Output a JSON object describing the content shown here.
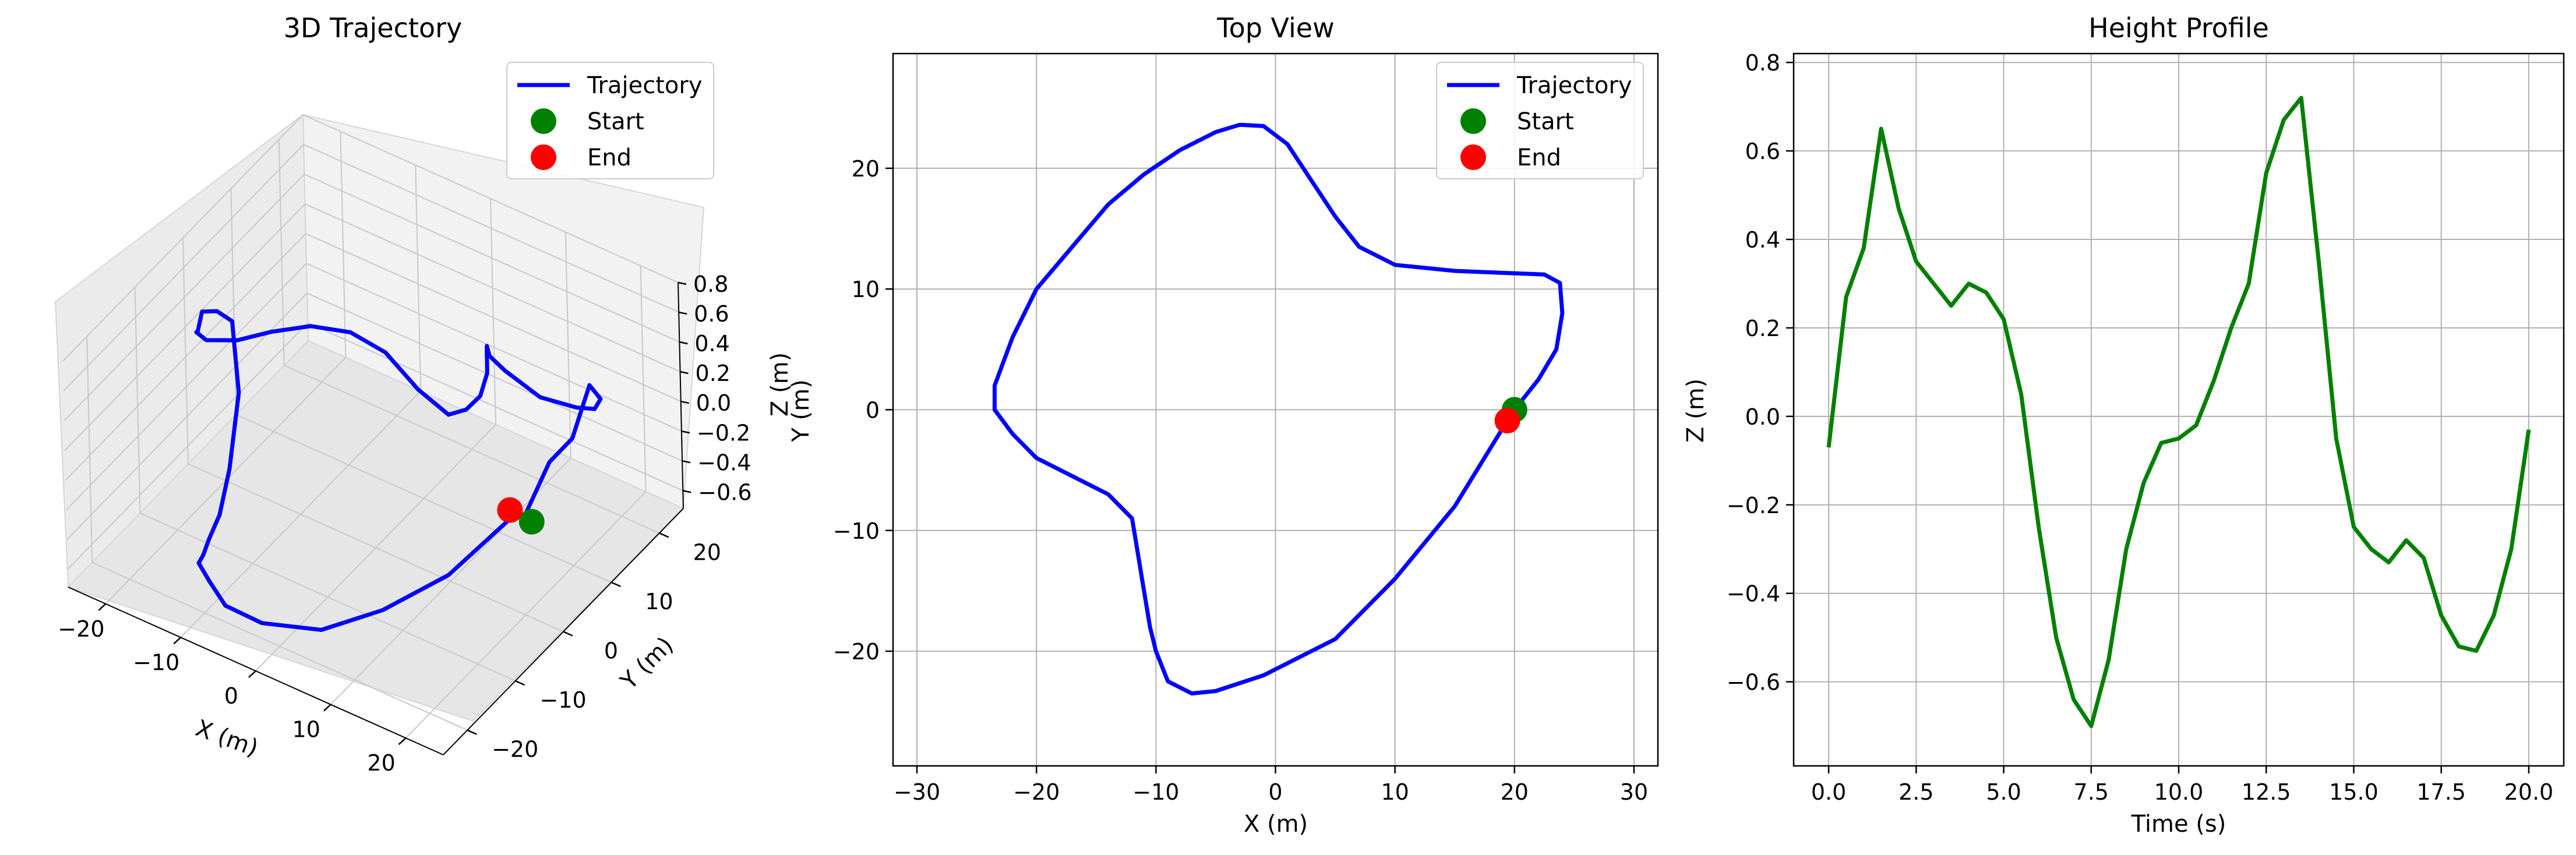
{
  "chart_data": [
    {
      "type": "line",
      "projection": "3d",
      "title": "3D Trajectory",
      "xlabel": "X (m)",
      "ylabel": "Y (m)",
      "zlabel": "Z (m)",
      "xlim": [
        -25,
        25
      ],
      "ylim": [
        -25,
        25
      ],
      "zlim": [
        -0.72,
        0.8
      ],
      "xticks": [
        -20,
        -10,
        0,
        10,
        20
      ],
      "yticks": [
        -20,
        -10,
        0,
        10,
        20
      ],
      "zticks": [
        -0.6,
        -0.4,
        -0.2,
        0.0,
        0.2,
        0.4,
        0.6,
        0.8
      ],
      "grid": true,
      "legend": {
        "position": "top-right",
        "entries": [
          "Trajectory",
          "Start",
          "End"
        ]
      },
      "series": [
        {
          "name": "Trajectory",
          "kind": "line",
          "color": "#0000ff",
          "source": "trajectory"
        },
        {
          "name": "Start",
          "kind": "marker",
          "color": "#008000",
          "point": {
            "x": 20,
            "y": 0,
            "z": -0.07
          }
        },
        {
          "name": "End",
          "kind": "marker",
          "color": "#ff0000",
          "point": {
            "x": 19.4,
            "y": -0.9,
            "z": -0.03
          }
        }
      ]
    },
    {
      "type": "line",
      "title": "Top View",
      "xlabel": "X (m)",
      "ylabel": "Y (m)",
      "xlim": [
        -32,
        32
      ],
      "ylim": [
        -29.5,
        29.5
      ],
      "xticks": [
        -30,
        -20,
        -10,
        0,
        10,
        20,
        30
      ],
      "yticks": [
        -20,
        -10,
        0,
        10,
        20
      ],
      "grid": true,
      "legend": {
        "position": "top-right",
        "entries": [
          "Trajectory",
          "Start",
          "End"
        ]
      },
      "series": [
        {
          "name": "Trajectory",
          "kind": "line",
          "color": "#0000ff",
          "source": "trajectory"
        },
        {
          "name": "Start",
          "kind": "marker",
          "color": "#008000",
          "point": {
            "x": 20,
            "y": 0
          }
        },
        {
          "name": "End",
          "kind": "marker",
          "color": "#ff0000",
          "point": {
            "x": 19.4,
            "y": -0.9
          }
        }
      ]
    },
    {
      "type": "line",
      "title": "Height Profile",
      "xlabel": "Time (s)",
      "ylabel": "Z (m)",
      "xlim": [
        -1,
        21
      ],
      "ylim": [
        -0.79,
        0.82
      ],
      "xticks": [
        0.0,
        2.5,
        5.0,
        7.5,
        10.0,
        12.5,
        15.0,
        17.5,
        20.0
      ],
      "yticks": [
        -0.6,
        -0.4,
        -0.2,
        0.0,
        0.2,
        0.4,
        0.6,
        0.8
      ],
      "grid": true,
      "series": [
        {
          "kind": "line",
          "color": "#008000",
          "source": "trajectory"
        }
      ]
    }
  ],
  "trajectory": {
    "time": [
      0,
      0.5,
      1,
      1.5,
      2,
      2.5,
      3,
      3.5,
      4,
      4.5,
      5,
      5.5,
      6,
      6.5,
      7,
      7.5,
      8,
      8.5,
      9,
      9.5,
      10,
      10.5,
      11,
      11.5,
      12,
      12.5,
      13,
      13.5,
      14,
      14.5,
      15,
      15.5,
      16,
      16.5,
      17,
      17.5,
      18,
      18.5,
      19,
      19.5,
      20
    ],
    "x": [
      20,
      22,
      23.5,
      24,
      23.8,
      22.5,
      20,
      15,
      10,
      7,
      5,
      3,
      1,
      -1,
      -3,
      -5,
      -8,
      -11,
      -14,
      -17,
      -20,
      -22,
      -23.5,
      -23.5,
      -22,
      -20,
      -17,
      -14,
      -12,
      -11.5,
      -11,
      -10.5,
      -10,
      -9,
      -7,
      -5,
      -1,
      5,
      10,
      15,
      19.4
    ],
    "y": [
      0,
      2.5,
      5,
      8,
      10.5,
      11.2,
      11.3,
      11.5,
      12,
      13.5,
      16,
      19,
      22,
      23.5,
      23.6,
      23,
      21.5,
      19.5,
      17,
      13.5,
      10,
      6,
      2,
      0,
      -2,
      -4,
      -5.5,
      -7,
      -9,
      -12,
      -15,
      -18,
      -20,
      -22.5,
      -23.5,
      -23.3,
      -22,
      -19,
      -14,
      -8,
      -0.9
    ],
    "z": [
      -0.07,
      0.27,
      0.38,
      0.65,
      0.47,
      0.35,
      0.3,
      0.25,
      0.3,
      0.28,
      0.22,
      0.05,
      -0.25,
      -0.5,
      -0.64,
      -0.7,
      -0.55,
      -0.3,
      -0.15,
      -0.06,
      -0.05,
      -0.02,
      0.08,
      0.2,
      0.3,
      0.55,
      0.67,
      0.72,
      0.35,
      -0.05,
      -0.25,
      -0.3,
      -0.33,
      -0.28,
      -0.32,
      -0.45,
      -0.52,
      -0.53,
      -0.45,
      -0.3,
      -0.03
    ]
  }
}
